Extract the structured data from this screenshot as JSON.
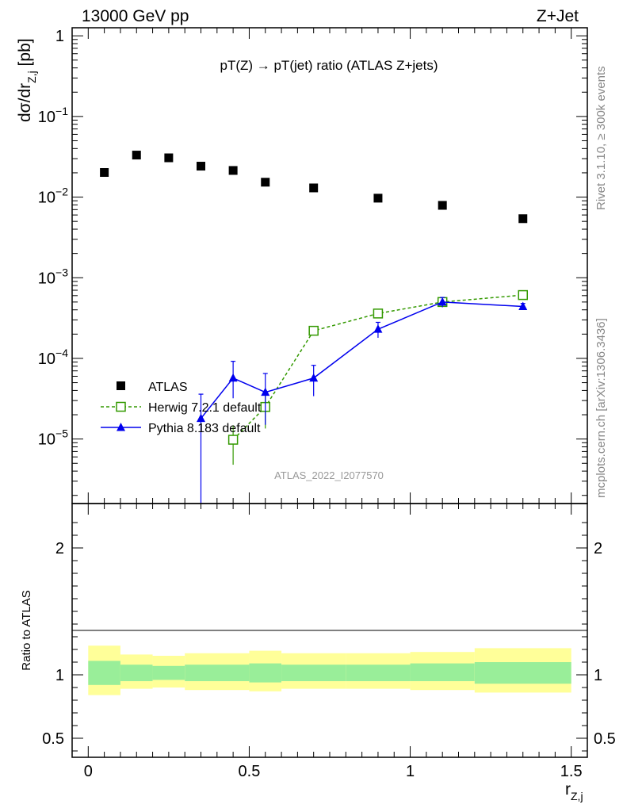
{
  "header": {
    "left": "13000 GeV pp",
    "right": "Z+Jet"
  },
  "plot": {
    "title": "pT(Z) → pT(jet) ratio (ATLAS Z+jets)",
    "ylabel_main": "dσ/dr",
    "ylabel_sub": "Z,j",
    "ylabel_unit": " [pb]",
    "xlabel_main": "r",
    "xlabel_sub": "Z,j",
    "ratio_ylabel": "Ratio to ATLAS",
    "watermark": "ATLAS_2022_I2077570",
    "side_top": "Rivet 3.1.10, ≥ 300k events",
    "side_bottom": "mcplots.cern.ch [arXiv:1306.3436]"
  },
  "chart_data": {
    "type": "scatter",
    "x_range": [
      -0.05,
      1.55
    ],
    "y_log_range": [
      -5.8,
      0.1
    ],
    "ratio_range": [
      0.35,
      2.35
    ],
    "x_ticks": [
      {
        "v": 0,
        "label": "0"
      },
      {
        "v": 0.5,
        "label": "0.5"
      },
      {
        "v": 1,
        "label": "1"
      },
      {
        "v": 1.5,
        "label": "1.5"
      }
    ],
    "y_ticks": [
      {
        "exp": 0,
        "base": "1",
        "sup": ""
      },
      {
        "exp": -1,
        "base": "10",
        "sup": "−1"
      },
      {
        "exp": -2,
        "base": "10",
        "sup": "−2"
      },
      {
        "exp": -3,
        "base": "10",
        "sup": "−3"
      },
      {
        "exp": -4,
        "base": "10",
        "sup": "−4"
      },
      {
        "exp": -5,
        "base": "10",
        "sup": "−5"
      }
    ],
    "ratio_ticks": [
      {
        "v": 0.5,
        "label": "0.5"
      },
      {
        "v": 1,
        "label": "1"
      },
      {
        "v": 2,
        "label": "2"
      }
    ],
    "legend": [
      {
        "name": "ATLAS",
        "color": "#000000"
      },
      {
        "name": "Herwig 7.2.1 default",
        "color": "#339900"
      },
      {
        "name": "Pythia 8.183 default",
        "color": "#0000ee"
      }
    ],
    "series": [
      {
        "name": "ATLAS",
        "x": [
          0.05,
          0.15,
          0.25,
          0.35,
          0.45,
          0.55,
          0.7,
          0.9,
          1.1,
          1.35
        ],
        "y": [
          0.0202,
          0.0332,
          0.0307,
          0.0242,
          0.0214,
          0.0153,
          0.013,
          0.0097,
          0.0079,
          0.0054
        ]
      },
      {
        "name": "Herwig 7.2.1 default",
        "x": [
          0.45,
          0.55,
          0.7,
          0.9,
          1.1,
          1.35
        ],
        "y": [
          9.8e-06,
          2.5e-05,
          0.00022,
          0.00036,
          0.0005,
          0.00061
        ],
        "err_low": [
          5e-06,
          1.15e-05,
          1.5e-05,
          2.5e-05,
          3e-05,
          3e-05
        ],
        "err_high": [
          5e-06,
          1.15e-05,
          1.5e-05,
          2.5e-05,
          3e-05,
          3e-05
        ]
      },
      {
        "name": "Pythia 8.183 default",
        "x": [
          0.35,
          0.45,
          0.55,
          0.7,
          0.9,
          1.1,
          1.35
        ],
        "y": [
          1.8e-05,
          5.7e-05,
          3.8e-05,
          5.7e-05,
          0.00023,
          0.0005,
          0.00044
        ],
        "err_low": [
          1.79e-05,
          2.5e-05,
          2.3e-05,
          2.3e-05,
          5e-05,
          7e-05,
          4e-05
        ],
        "err_high": [
          1.8e-05,
          3.5e-05,
          2.7e-05,
          2.5e-05,
          5e-05,
          7e-05,
          4e-05
        ]
      }
    ],
    "ratio_bands": [
      {
        "x0": 0.0,
        "x1": 0.1,
        "inner": [
          0.92,
          1.11
        ],
        "outer": [
          0.84,
          1.23
        ]
      },
      {
        "x0": 0.1,
        "x1": 0.2,
        "inner": [
          0.95,
          1.08
        ],
        "outer": [
          0.89,
          1.16
        ]
      },
      {
        "x0": 0.2,
        "x1": 0.3,
        "inner": [
          0.96,
          1.07
        ],
        "outer": [
          0.9,
          1.15
        ]
      },
      {
        "x0": 0.3,
        "x1": 0.5,
        "inner": [
          0.95,
          1.08
        ],
        "outer": [
          0.88,
          1.17
        ]
      },
      {
        "x0": 0.5,
        "x1": 0.6,
        "inner": [
          0.94,
          1.09
        ],
        "outer": [
          0.87,
          1.19
        ]
      },
      {
        "x0": 0.6,
        "x1": 0.8,
        "inner": [
          0.95,
          1.08
        ],
        "outer": [
          0.89,
          1.17
        ]
      },
      {
        "x0": 0.8,
        "x1": 1.0,
        "inner": [
          0.95,
          1.08
        ],
        "outer": [
          0.89,
          1.17
        ]
      },
      {
        "x0": 1.0,
        "x1": 1.2,
        "inner": [
          0.95,
          1.09
        ],
        "outer": [
          0.88,
          1.18
        ]
      },
      {
        "x0": 1.2,
        "x1": 1.5,
        "inner": [
          0.93,
          1.1
        ],
        "outer": [
          0.86,
          1.21
        ]
      }
    ],
    "colors": {
      "inner_band": "#99ee99",
      "outer_band": "#ffff99",
      "atlas": "#000000",
      "herwig": "#339900",
      "pythia": "#0000ee"
    }
  }
}
